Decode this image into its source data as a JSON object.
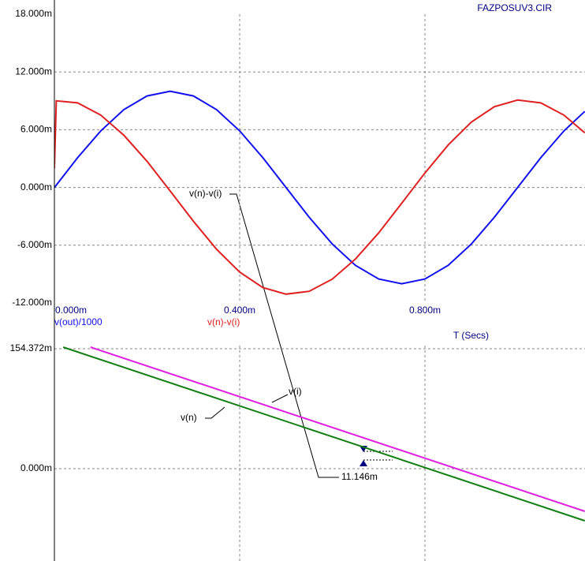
{
  "chart_data": [
    {
      "type": "line",
      "title": "FAZPOSUV3.CIR",
      "x_label": "T (Secs)",
      "x": [
        0,
        0.004,
        0.05,
        0.1,
        0.15,
        0.2,
        0.25,
        0.3,
        0.35,
        0.4,
        0.45,
        0.5,
        0.55,
        0.6,
        0.65,
        0.7,
        0.75,
        0.8,
        0.85,
        0.9,
        0.95,
        1.0,
        1.05,
        1.1,
        1.145
      ],
      "series": [
        {
          "name": "v(out)/1000",
          "color": "#1010f0",
          "values": [
            0,
            0.25,
            3.09,
            5.88,
            8.09,
            9.51,
            10,
            9.51,
            8.09,
            5.88,
            3.09,
            0,
            -3.09,
            -5.88,
            -8.09,
            -9.51,
            -10,
            -9.51,
            -8.09,
            -5.88,
            -3.09,
            0,
            3.09,
            5.88,
            7.9
          ]
        },
        {
          "name": "v(n)-v(i)",
          "color": "#e02020",
          "values": [
            2.0,
            9.0,
            8.79,
            7.52,
            5.43,
            2.72,
            -0.37,
            -3.51,
            -6.41,
            -8.79,
            -10.39,
            -11.08,
            -10.79,
            -9.52,
            -7.43,
            -4.72,
            -1.63,
            1.51,
            4.41,
            6.79,
            8.39,
            9.08,
            8.79,
            7.52,
            5.68
          ]
        }
      ],
      "xlim": [
        0,
        1.1455
      ],
      "xticks": [
        {
          "value": 0,
          "label": "0.000m"
        },
        {
          "value": 0.4,
          "label": "0.400m"
        },
        {
          "value": 0.8,
          "label": "0.800m"
        }
      ],
      "ylim": [
        -12,
        18
      ],
      "yticks": [
        {
          "value": 18,
          "label": "18.000m"
        },
        {
          "value": 12,
          "label": "12.000m"
        },
        {
          "value": 6,
          "label": "6.000m"
        },
        {
          "value": 0,
          "label": "0.000m"
        },
        {
          "value": -6,
          "label": "-6.000m"
        },
        {
          "value": -12,
          "label": "-12.000m"
        }
      ],
      "grid": true
    },
    {
      "type": "line",
      "annotation": "11.146m",
      "series": [
        {
          "name": "v(n)",
          "color": "#108010",
          "x": [
            0.019,
            1.145
          ],
          "values": [
            156.4,
            -67.0
          ]
        },
        {
          "name": "v(i)",
          "color": "#e020e0",
          "x": [
            0.078,
            1.145
          ],
          "values": [
            156.4,
            -54.8
          ]
        }
      ],
      "xlim": [
        0,
        1.1455
      ],
      "ylim": [
        -118.8,
        158.4
      ],
      "yticks": [
        {
          "value": 154.372,
          "label": "154.372m"
        },
        {
          "value": 0,
          "label": "0.000m"
        }
      ],
      "grid": true
    }
  ]
}
